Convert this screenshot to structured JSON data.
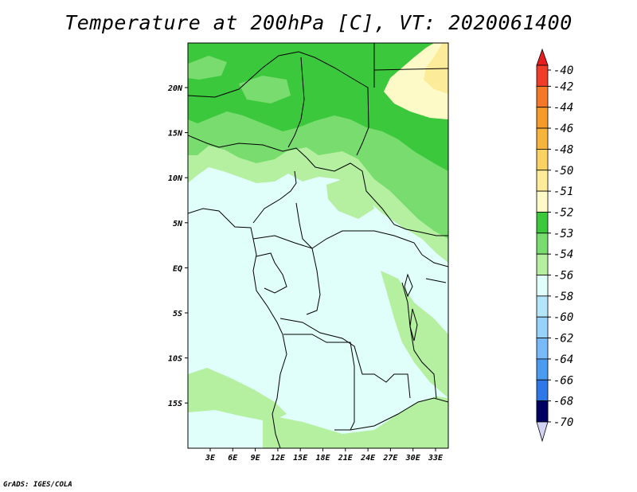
{
  "title": "Temperature at 200hPa [C], VT: 2020061400",
  "credit": "GrADS: IGES/COLA",
  "map": {
    "lon_ticks": [
      "3E",
      "6E",
      "9E",
      "12E",
      "15E",
      "18E",
      "21E",
      "24E",
      "27E",
      "30E",
      "33E"
    ],
    "lat_ticks": [
      "20N",
      "15N",
      "10N",
      "5N",
      "EQ",
      "5S",
      "10S",
      "15S"
    ]
  },
  "colorbar": {
    "levels": [
      {
        "label": "-40",
        "color": "#f03c28"
      },
      {
        "label": "-42",
        "color": "#f57828"
      },
      {
        "label": "-44",
        "color": "#f59b28"
      },
      {
        "label": "-46",
        "color": "#f7b43c"
      },
      {
        "label": "-48",
        "color": "#fad264"
      },
      {
        "label": "-50",
        "color": "#fcec99"
      },
      {
        "label": "-51",
        "color": "#fdfac8"
      },
      {
        "label": "-52",
        "color": "#3cc83c"
      },
      {
        "label": "-53",
        "color": "#78dc6e"
      },
      {
        "label": "-54",
        "color": "#b4f0a0"
      },
      {
        "label": "-56",
        "color": "#e1fffa"
      },
      {
        "label": "-58",
        "color": "#b4e6fa"
      },
      {
        "label": "-60",
        "color": "#96d2fa"
      },
      {
        "label": "-62",
        "color": "#78b9fa"
      },
      {
        "label": "-64",
        "color": "#4b9bf0"
      },
      {
        "label": "-66",
        "color": "#2d78e6"
      },
      {
        "label": "-68",
        "color": "#1e5ac8"
      },
      {
        "label": "-70",
        "color": "#0a32a0"
      }
    ],
    "top_color": "#e61e1e",
    "bottom_color": "#000064",
    "below_color": "#d2d2f5"
  }
}
